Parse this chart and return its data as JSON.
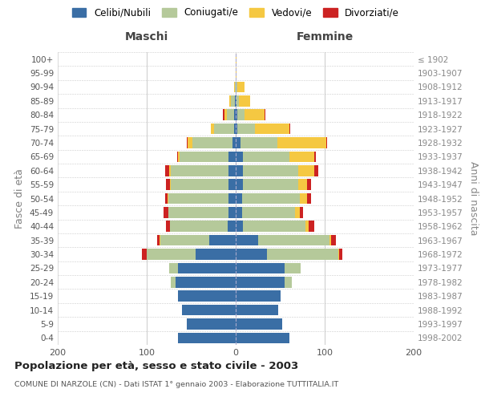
{
  "age_groups": [
    "0-4",
    "5-9",
    "10-14",
    "15-19",
    "20-24",
    "25-29",
    "30-34",
    "35-39",
    "40-44",
    "45-49",
    "50-54",
    "55-59",
    "60-64",
    "65-69",
    "70-74",
    "75-79",
    "80-84",
    "85-89",
    "90-94",
    "95-99",
    "100+"
  ],
  "birth_years": [
    "1998-2002",
    "1993-1997",
    "1988-1992",
    "1983-1987",
    "1978-1982",
    "1973-1977",
    "1968-1972",
    "1963-1967",
    "1958-1962",
    "1953-1957",
    "1948-1952",
    "1943-1947",
    "1938-1942",
    "1933-1937",
    "1928-1932",
    "1923-1927",
    "1918-1922",
    "1913-1917",
    "1908-1912",
    "1903-1907",
    "≤ 1902"
  ],
  "males": {
    "celibi": [
      65,
      55,
      60,
      65,
      68,
      65,
      45,
      30,
      9,
      8,
      8,
      8,
      8,
      8,
      4,
      2,
      2,
      1,
      0,
      0,
      0
    ],
    "coniugati": [
      0,
      0,
      0,
      0,
      5,
      10,
      55,
      55,
      65,
      68,
      68,
      65,
      65,
      55,
      45,
      22,
      8,
      4,
      1,
      0,
      0
    ],
    "vedovi": [
      0,
      0,
      0,
      0,
      0,
      0,
      0,
      1,
      0,
      0,
      1,
      1,
      2,
      2,
      5,
      4,
      3,
      2,
      1,
      0,
      0
    ],
    "divorziati": [
      0,
      0,
      0,
      0,
      0,
      0,
      5,
      2,
      4,
      5,
      2,
      4,
      4,
      1,
      1,
      0,
      1,
      0,
      0,
      0,
      0
    ]
  },
  "females": {
    "nubili": [
      60,
      52,
      48,
      50,
      55,
      55,
      35,
      25,
      8,
      7,
      7,
      8,
      8,
      8,
      5,
      2,
      2,
      1,
      0,
      0,
      0
    ],
    "coniugate": [
      0,
      0,
      0,
      0,
      8,
      18,
      80,
      80,
      70,
      60,
      65,
      62,
      62,
      52,
      42,
      20,
      8,
      3,
      2,
      0,
      0
    ],
    "vedove": [
      0,
      0,
      0,
      0,
      0,
      0,
      1,
      2,
      4,
      5,
      8,
      10,
      18,
      28,
      55,
      38,
      22,
      12,
      8,
      1,
      1
    ],
    "divorziate": [
      0,
      0,
      0,
      0,
      0,
      0,
      4,
      6,
      6,
      4,
      5,
      5,
      5,
      2,
      1,
      1,
      1,
      0,
      0,
      0,
      0
    ]
  },
  "colors": {
    "celibi": "#3a6ea5",
    "coniugati": "#b5c99a",
    "vedovi": "#f5c842",
    "divorziati": "#cc2222"
  },
  "xlim": 200,
  "title": "Popolazione per età, sesso e stato civile - 2003",
  "subtitle": "COMUNE DI NARZOLE (CN) - Dati ISTAT 1° gennaio 2003 - Elaborazione TUTTITALIA.IT",
  "ylabel_left": "Fasce di età",
  "ylabel_right": "Anni di nascita",
  "xlabel_maschi": "Maschi",
  "xlabel_femmine": "Femmine",
  "bg_color": "#ffffff",
  "grid_color": "#cccccc"
}
